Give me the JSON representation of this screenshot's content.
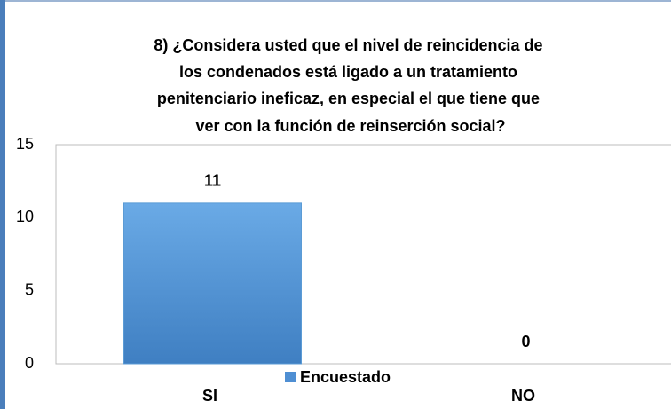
{
  "chart_data": {
    "type": "bar",
    "title": [
      "8) ¿Considera usted que el nivel de reincidencia de",
      "los condenados está ligado a un tratamiento",
      "penitenciario ineficaz, en especial el que tiene que",
      "ver con la función de reinserción social?"
    ],
    "categories": [
      "SI",
      "NO"
    ],
    "series": [
      {
        "name": "Encuestado",
        "color": "#4f8fd3",
        "values": [
          11,
          0
        ]
      }
    ],
    "ylim": [
      0,
      15
    ],
    "yticks": [
      0,
      5,
      10,
      15
    ],
    "grid": false
  }
}
